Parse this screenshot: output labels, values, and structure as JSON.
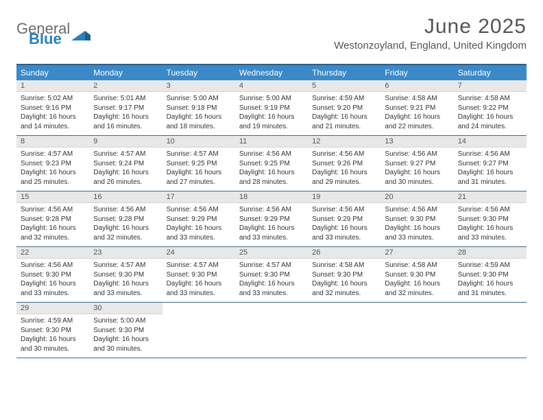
{
  "header": {
    "logo_general": "General",
    "logo_blue": "Blue",
    "month_title": "June 2025",
    "location": "Westonzoyland, England, United Kingdom"
  },
  "colors": {
    "header_bar": "#3a89c9",
    "row_border": "#3a6a8f",
    "daynum_bg": "#e8e8e8",
    "text": "#333333",
    "title_text": "#555555",
    "logo_gray": "#6b6b6b",
    "logo_blue": "#2a7fba"
  },
  "calendar": {
    "day_names": [
      "Sunday",
      "Monday",
      "Tuesday",
      "Wednesday",
      "Thursday",
      "Friday",
      "Saturday"
    ],
    "first_weekday_index": 0,
    "days": [
      {
        "n": 1,
        "sunrise": "5:02 AM",
        "sunset": "9:16 PM",
        "daylight_h": 16,
        "daylight_m": 14
      },
      {
        "n": 2,
        "sunrise": "5:01 AM",
        "sunset": "9:17 PM",
        "daylight_h": 16,
        "daylight_m": 16
      },
      {
        "n": 3,
        "sunrise": "5:00 AM",
        "sunset": "9:18 PM",
        "daylight_h": 16,
        "daylight_m": 18
      },
      {
        "n": 4,
        "sunrise": "5:00 AM",
        "sunset": "9:19 PM",
        "daylight_h": 16,
        "daylight_m": 19
      },
      {
        "n": 5,
        "sunrise": "4:59 AM",
        "sunset": "9:20 PM",
        "daylight_h": 16,
        "daylight_m": 21
      },
      {
        "n": 6,
        "sunrise": "4:58 AM",
        "sunset": "9:21 PM",
        "daylight_h": 16,
        "daylight_m": 22
      },
      {
        "n": 7,
        "sunrise": "4:58 AM",
        "sunset": "9:22 PM",
        "daylight_h": 16,
        "daylight_m": 24
      },
      {
        "n": 8,
        "sunrise": "4:57 AM",
        "sunset": "9:23 PM",
        "daylight_h": 16,
        "daylight_m": 25
      },
      {
        "n": 9,
        "sunrise": "4:57 AM",
        "sunset": "9:24 PM",
        "daylight_h": 16,
        "daylight_m": 26
      },
      {
        "n": 10,
        "sunrise": "4:57 AM",
        "sunset": "9:25 PM",
        "daylight_h": 16,
        "daylight_m": 27
      },
      {
        "n": 11,
        "sunrise": "4:56 AM",
        "sunset": "9:25 PM",
        "daylight_h": 16,
        "daylight_m": 28
      },
      {
        "n": 12,
        "sunrise": "4:56 AM",
        "sunset": "9:26 PM",
        "daylight_h": 16,
        "daylight_m": 29
      },
      {
        "n": 13,
        "sunrise": "4:56 AM",
        "sunset": "9:27 PM",
        "daylight_h": 16,
        "daylight_m": 30
      },
      {
        "n": 14,
        "sunrise": "4:56 AM",
        "sunset": "9:27 PM",
        "daylight_h": 16,
        "daylight_m": 31
      },
      {
        "n": 15,
        "sunrise": "4:56 AM",
        "sunset": "9:28 PM",
        "daylight_h": 16,
        "daylight_m": 32
      },
      {
        "n": 16,
        "sunrise": "4:56 AM",
        "sunset": "9:28 PM",
        "daylight_h": 16,
        "daylight_m": 32
      },
      {
        "n": 17,
        "sunrise": "4:56 AM",
        "sunset": "9:29 PM",
        "daylight_h": 16,
        "daylight_m": 33
      },
      {
        "n": 18,
        "sunrise": "4:56 AM",
        "sunset": "9:29 PM",
        "daylight_h": 16,
        "daylight_m": 33
      },
      {
        "n": 19,
        "sunrise": "4:56 AM",
        "sunset": "9:29 PM",
        "daylight_h": 16,
        "daylight_m": 33
      },
      {
        "n": 20,
        "sunrise": "4:56 AM",
        "sunset": "9:30 PM",
        "daylight_h": 16,
        "daylight_m": 33
      },
      {
        "n": 21,
        "sunrise": "4:56 AM",
        "sunset": "9:30 PM",
        "daylight_h": 16,
        "daylight_m": 33
      },
      {
        "n": 22,
        "sunrise": "4:56 AM",
        "sunset": "9:30 PM",
        "daylight_h": 16,
        "daylight_m": 33
      },
      {
        "n": 23,
        "sunrise": "4:57 AM",
        "sunset": "9:30 PM",
        "daylight_h": 16,
        "daylight_m": 33
      },
      {
        "n": 24,
        "sunrise": "4:57 AM",
        "sunset": "9:30 PM",
        "daylight_h": 16,
        "daylight_m": 33
      },
      {
        "n": 25,
        "sunrise": "4:57 AM",
        "sunset": "9:30 PM",
        "daylight_h": 16,
        "daylight_m": 33
      },
      {
        "n": 26,
        "sunrise": "4:58 AM",
        "sunset": "9:30 PM",
        "daylight_h": 16,
        "daylight_m": 32
      },
      {
        "n": 27,
        "sunrise": "4:58 AM",
        "sunset": "9:30 PM",
        "daylight_h": 16,
        "daylight_m": 32
      },
      {
        "n": 28,
        "sunrise": "4:59 AM",
        "sunset": "9:30 PM",
        "daylight_h": 16,
        "daylight_m": 31
      },
      {
        "n": 29,
        "sunrise": "4:59 AM",
        "sunset": "9:30 PM",
        "daylight_h": 16,
        "daylight_m": 30
      },
      {
        "n": 30,
        "sunrise": "5:00 AM",
        "sunset": "9:30 PM",
        "daylight_h": 16,
        "daylight_m": 30
      }
    ],
    "labels": {
      "sunrise_prefix": "Sunrise: ",
      "sunset_prefix": "Sunset: ",
      "daylight_prefix": "Daylight: ",
      "hours_word": " hours",
      "and_word": " and ",
      "minutes_word": " minutes."
    }
  }
}
